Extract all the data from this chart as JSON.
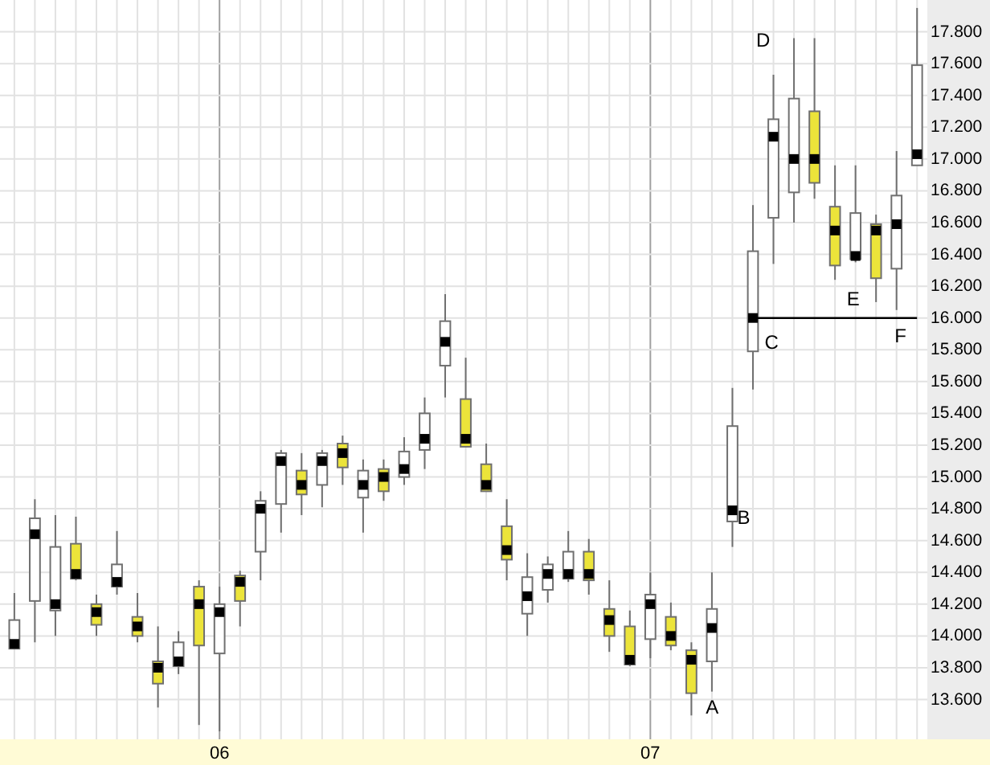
{
  "chart_data": {
    "type": "candlestick",
    "categories": [
      null,
      null,
      null,
      null,
      null,
      null,
      null,
      null,
      null,
      null,
      "06",
      null,
      null,
      null,
      null,
      null,
      null,
      null,
      null,
      null,
      null,
      null,
      null,
      null,
      null,
      null,
      null,
      null,
      null,
      null,
      null,
      "07",
      null,
      null,
      null,
      null,
      null,
      null,
      null,
      null,
      null,
      null,
      null,
      null,
      null
    ],
    "ylim": [
      13.35,
      18.0
    ],
    "yticks": [
      {
        "value": 13.6,
        "label": "13.600"
      },
      {
        "value": 13.8,
        "label": "13.800"
      },
      {
        "value": 14.0,
        "label": "14.000"
      },
      {
        "value": 14.2,
        "label": "14.200"
      },
      {
        "value": 14.4,
        "label": "14.400"
      },
      {
        "value": 14.6,
        "label": "14.600"
      },
      {
        "value": 14.8,
        "label": "14.800"
      },
      {
        "value": 15.0,
        "label": "15.000"
      },
      {
        "value": 15.2,
        "label": "15.200"
      },
      {
        "value": 15.4,
        "label": "15.400"
      },
      {
        "value": 15.6,
        "label": "15.600"
      },
      {
        "value": 15.8,
        "label": "15.800"
      },
      {
        "value": 16.0,
        "label": "16.000"
      },
      {
        "value": 16.2,
        "label": "16.200"
      },
      {
        "value": 16.4,
        "label": "16.400"
      },
      {
        "value": 16.6,
        "label": "16.600"
      },
      {
        "value": 16.8,
        "label": "16.800"
      },
      {
        "value": 17.0,
        "label": "17.000"
      },
      {
        "value": 17.2,
        "label": "17.200"
      },
      {
        "value": 17.4,
        "label": "17.400"
      },
      {
        "value": 17.6,
        "label": "17.600"
      },
      {
        "value": 17.8,
        "label": "17.800"
      }
    ],
    "grid": true,
    "annotations": [
      "A",
      "B",
      "C",
      "D",
      "E",
      "F"
    ],
    "ohlc": [
      [
        13.92,
        14.27,
        13.92,
        14.1
      ],
      [
        14.22,
        14.86,
        13.96,
        14.74
      ],
      [
        14.16,
        14.76,
        14.0,
        14.56
      ],
      [
        14.58,
        14.75,
        14.35,
        14.36
      ],
      [
        14.2,
        14.26,
        14.0,
        14.07
      ],
      [
        14.31,
        14.66,
        14.26,
        14.45
      ],
      [
        14.12,
        14.27,
        13.96,
        14.0
      ],
      [
        13.84,
        14.06,
        13.55,
        13.7
      ],
      [
        13.81,
        14.03,
        13.76,
        13.96
      ],
      [
        14.31,
        14.35,
        13.44,
        13.94
      ],
      [
        13.89,
        14.31,
        13.4,
        14.2
      ],
      [
        14.38,
        14.41,
        14.06,
        14.22
      ],
      [
        14.53,
        14.91,
        14.35,
        14.85
      ],
      [
        14.83,
        15.17,
        14.65,
        15.15
      ],
      [
        15.04,
        15.15,
        14.76,
        14.89
      ],
      [
        14.95,
        15.17,
        14.81,
        15.15
      ],
      [
        15.21,
        15.26,
        14.95,
        15.06
      ],
      [
        14.87,
        15.11,
        14.65,
        15.04
      ],
      [
        15.05,
        15.11,
        14.85,
        14.91
      ],
      [
        15.0,
        15.25,
        14.95,
        15.16
      ],
      [
        15.17,
        15.5,
        15.05,
        15.4
      ],
      [
        15.7,
        16.15,
        15.5,
        15.98
      ],
      [
        15.49,
        15.75,
        15.19,
        15.19
      ],
      [
        15.08,
        15.21,
        14.91,
        14.91
      ],
      [
        14.69,
        14.86,
        14.35,
        14.48
      ],
      [
        14.14,
        14.52,
        14.0,
        14.37
      ],
      [
        14.29,
        14.5,
        14.21,
        14.45
      ],
      [
        14.36,
        14.66,
        14.34,
        14.53
      ],
      [
        14.53,
        14.61,
        14.26,
        14.35
      ],
      [
        14.17,
        14.35,
        13.9,
        14.0
      ],
      [
        14.06,
        14.16,
        13.81,
        13.82
      ],
      [
        13.98,
        14.4,
        13.86,
        14.26
      ],
      [
        14.12,
        14.21,
        13.91,
        13.94
      ],
      [
        13.91,
        13.96,
        13.5,
        13.64
      ],
      [
        13.84,
        14.4,
        13.65,
        14.17
      ],
      [
        14.72,
        15.56,
        14.56,
        15.32
      ],
      [
        15.79,
        16.71,
        15.55,
        16.42
      ],
      [
        16.63,
        17.53,
        16.34,
        17.25
      ],
      [
        16.79,
        17.76,
        16.6,
        17.38
      ],
      [
        17.3,
        17.76,
        16.75,
        16.85
      ],
      [
        16.7,
        16.96,
        16.24,
        16.33
      ],
      [
        16.37,
        16.96,
        16.35,
        16.66
      ],
      [
        16.59,
        16.65,
        16.1,
        16.25
      ],
      [
        16.31,
        17.05,
        16.05,
        16.77
      ],
      [
        16.96,
        17.95,
        16.96,
        17.59
      ]
    ],
    "colors": [
      "#ffffff",
      "#ffffff",
      "#ffffff",
      "#ece43a",
      "#ece43a",
      "#ffffff",
      "#ece43a",
      "#ece43a",
      "#ffffff",
      "#ece43a",
      "#ffffff",
      "#ece43a",
      "#ffffff",
      "#ffffff",
      "#ece43a",
      "#ffffff",
      "#ece43a",
      "#ffffff",
      "#ece43a",
      "#ffffff",
      "#ffffff",
      "#ffffff",
      "#ece43a",
      "#ece43a",
      "#ece43a",
      "#ffffff",
      "#ffffff",
      "#ffffff",
      "#ece43a",
      "#ece43a",
      "#ece43a",
      "#ffffff",
      "#ece43a",
      "#ece43a",
      "#ffffff",
      "#ffffff",
      "#ffffff",
      "#ffffff",
      "#ffffff",
      "#ece43a",
      "#ece43a",
      "#ffffff",
      "#ece43a",
      "#ffffff",
      "#ffffff"
    ],
    "series": [
      {
        "type": "scatter",
        "marker": "square",
        "color": "#000000",
        "values": [
          13.95,
          14.64,
          14.2,
          14.39,
          14.15,
          14.34,
          14.06,
          13.8,
          13.84,
          14.2,
          14.15,
          14.34,
          14.8,
          15.1,
          14.95,
          15.1,
          15.15,
          14.95,
          15.0,
          15.05,
          15.24,
          15.85,
          15.24,
          14.95,
          14.54,
          14.25,
          14.39,
          14.39,
          14.39,
          14.1,
          13.85,
          14.2,
          14.0,
          13.85,
          14.05,
          14.79,
          16.0,
          17.14,
          17.0,
          17.0,
          16.55,
          16.39,
          16.55,
          16.59,
          17.03
        ]
      },
      {
        "type": "line",
        "color": "#000000",
        "values": [
          null,
          null,
          null,
          null,
          null,
          null,
          null,
          null,
          null,
          null,
          null,
          null,
          null,
          null,
          null,
          null,
          null,
          null,
          null,
          null,
          null,
          null,
          null,
          null,
          null,
          null,
          null,
          null,
          null,
          null,
          null,
          null,
          null,
          null,
          null,
          null,
          16,
          16,
          16,
          16,
          16,
          16,
          16,
          16,
          16
        ]
      }
    ]
  }
}
